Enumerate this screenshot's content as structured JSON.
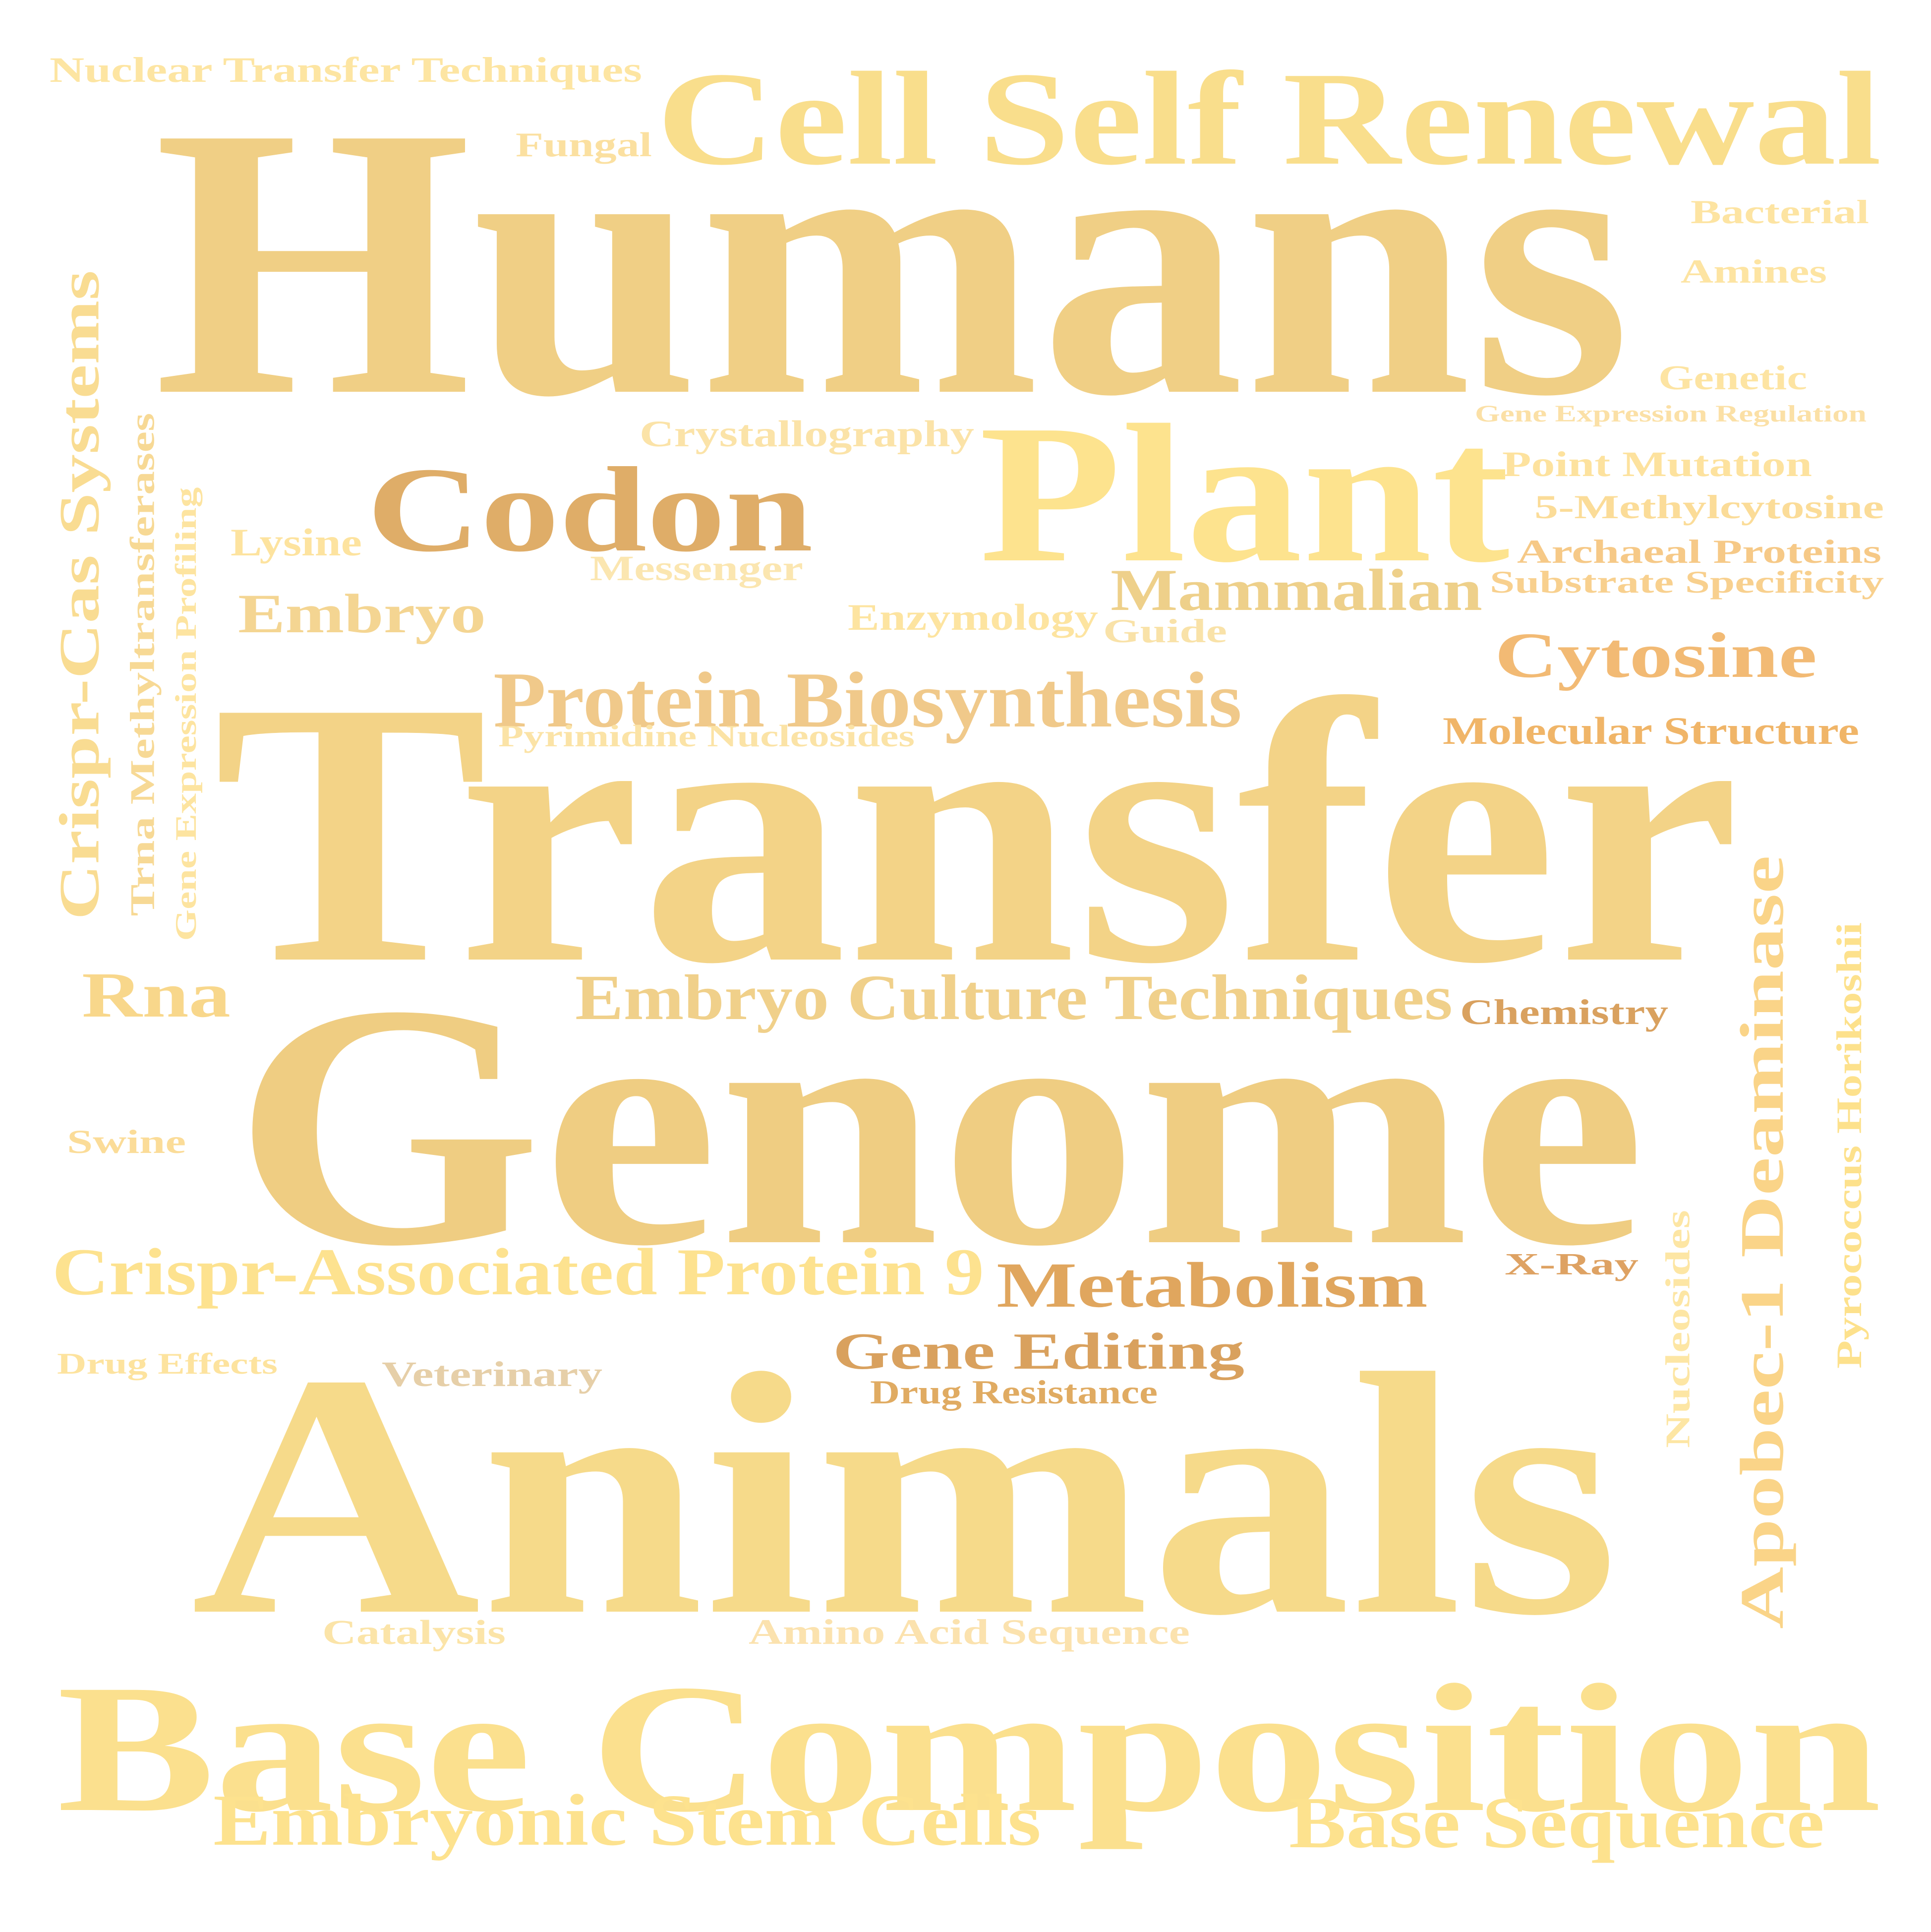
{
  "word_cloud": {
    "words": [
      {
        "id": "humans",
        "text": "Humans",
        "color": "#f0cf85"
      },
      {
        "id": "transfer",
        "text": "Transfer",
        "color": "#f3d387"
      },
      {
        "id": "genome",
        "text": "Genome",
        "color": "#efcd82"
      },
      {
        "id": "animals",
        "text": "Animals",
        "color": "#f6da8a"
      },
      {
        "id": "base-composition",
        "text": "Base Composition",
        "color": "#fbe08e"
      },
      {
        "id": "cell-self-renewal",
        "text": "Cell Self Renewal",
        "color": "#f9de8c"
      },
      {
        "id": "plant",
        "text": "Plant",
        "color": "#fde38e"
      },
      {
        "id": "codon",
        "text": "Codon",
        "color": "#dfad68"
      },
      {
        "id": "protein-biosynthesis",
        "text": "Protein Biosynthesis",
        "color": "#f0c98a"
      },
      {
        "id": "embryo-culture-techniques",
        "text": "Embryo Culture Techniques",
        "color": "#f0d08a"
      },
      {
        "id": "crispr-associated-protein-9",
        "text": "Crispr-Associated Protein 9",
        "color": "#fde28f"
      },
      {
        "id": "embryonic-stem-cells",
        "text": "Embryonic Stem Cells",
        "color": "#fde28e"
      },
      {
        "id": "base-sequence",
        "text": "Base Sequence",
        "color": "#fde28e"
      },
      {
        "id": "metabolism",
        "text": "Metabolism",
        "color": "#e0a65e"
      },
      {
        "id": "gene-editing",
        "text": "Gene Editing",
        "color": "#d9a15e"
      },
      {
        "id": "drug-resistance",
        "text": "Drug Resistance",
        "color": "#e0ab62"
      },
      {
        "id": "apobec-1-deaminase",
        "text": "Apobec-1 Deaminase",
        "color": "#fad488"
      },
      {
        "id": "pyrococcus-horikoshii",
        "text": "Pyrococcus Horikoshii",
        "color": "#fde18c"
      },
      {
        "id": "nucleosides",
        "text": "Nucleosides",
        "color": "#fde6a4"
      },
      {
        "id": "crispr-cas-systems",
        "text": "Crispr-Cas Systems",
        "color": "#f9dc92"
      },
      {
        "id": "trna-methyltransferases",
        "text": "Trna Methyltransferases",
        "color": "#f7d995"
      },
      {
        "id": "gene-expression-profiling",
        "text": "Gene Expression Profiling",
        "color": "#fde4a0"
      },
      {
        "id": "mammalian",
        "text": "Mammalian",
        "color": "#eed08a"
      },
      {
        "id": "cytosine",
        "text": "Cytosine",
        "color": "#f2ba74"
      },
      {
        "id": "molecular-structure",
        "text": "Molecular Structure",
        "color": "#f0b568"
      },
      {
        "id": "chemistry",
        "text": "Chemistry",
        "color": "#d9a15f"
      },
      {
        "id": "x-ray",
        "text": "X-Ray",
        "color": "#dea263"
      },
      {
        "id": "rna",
        "text": "Rna",
        "color": "#f8d78b"
      },
      {
        "id": "embryo",
        "text": "Embryo",
        "color": "#f4d592"
      },
      {
        "id": "lysine",
        "text": "Lysine",
        "color": "#fde39f"
      },
      {
        "id": "messenger",
        "text": "Messenger",
        "color": "#fbe6b0"
      },
      {
        "id": "crystallography",
        "text": "Crystallography",
        "color": "#fbe3a8"
      },
      {
        "id": "enzymology",
        "text": "Enzymology",
        "color": "#fde4a0"
      },
      {
        "id": "guide",
        "text": "Guide",
        "color": "#f9e2a8"
      },
      {
        "id": "pyrimidine-nucleosides",
        "text": "Pyrimidine Nucleosides",
        "color": "#fbe3a6"
      },
      {
        "id": "nuclear-transfer-techniques",
        "text": "Nuclear Transfer Techniques",
        "color": "#fde5a2"
      },
      {
        "id": "fungal",
        "text": "Fungal",
        "color": "#fbe0a0"
      },
      {
        "id": "bacterial",
        "text": "Bacterial",
        "color": "#fde4a2"
      },
      {
        "id": "amines",
        "text": "Amines",
        "color": "#fde4a2"
      },
      {
        "id": "genetic",
        "text": "Genetic",
        "color": "#fde4a2"
      },
      {
        "id": "gene-expression-regulation",
        "text": "Gene Expression Regulation",
        "color": "#fbe0a6"
      },
      {
        "id": "point-mutation",
        "text": "Point Mutation",
        "color": "#fde29e"
      },
      {
        "id": "5-methylcytosine",
        "text": "5-Methylcytosine",
        "color": "#fbdc98"
      },
      {
        "id": "archaeal-proteins",
        "text": "Archaeal Proteins",
        "color": "#f6c987"
      },
      {
        "id": "substrate-specificity",
        "text": "Substrate Specificity",
        "color": "#f8d08e"
      },
      {
        "id": "swine",
        "text": "Swine",
        "color": "#fbdc98"
      },
      {
        "id": "drug-effects",
        "text": "Drug Effects",
        "color": "#fde39e"
      },
      {
        "id": "veterinary",
        "text": "Veterinary",
        "color": "#e6cfa8"
      },
      {
        "id": "catalysis",
        "text": "Catalysis",
        "color": "#fbe4a8"
      },
      {
        "id": "amino-acid-sequence",
        "text": "Amino Acid Sequence",
        "color": "#fbe2ae"
      }
    ]
  }
}
